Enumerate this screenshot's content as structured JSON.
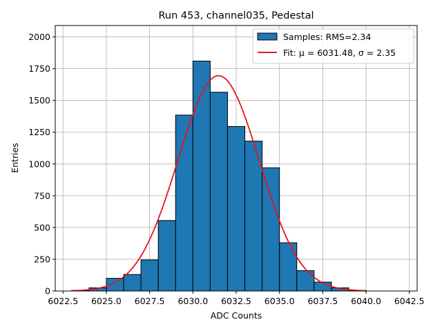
{
  "chart_data": {
    "type": "bar",
    "title": "Run 453, channel035, Pedestal",
    "xlabel": "ADC Counts",
    "ylabel": "Entries",
    "xlim": [
      6022.05,
      6042.95
    ],
    "ylim": [
      0,
      2090
    ],
    "xticks": [
      6022.5,
      6025.0,
      6027.5,
      6030.0,
      6032.5,
      6035.0,
      6037.5,
      6040.0,
      6042.5
    ],
    "xtick_labels": [
      "6022.5",
      "6025.0",
      "6027.5",
      "6030.0",
      "6032.5",
      "6035.0",
      "6037.5",
      "6040.0",
      "6042.5"
    ],
    "yticks": [
      0,
      250,
      500,
      750,
      1000,
      1250,
      1500,
      1750,
      2000
    ],
    "ytick_labels": [
      "0",
      "250",
      "500",
      "750",
      "1000",
      "1250",
      "1500",
      "1750",
      "2000"
    ],
    "grid": true,
    "legend_position": "top-right",
    "bins": {
      "edges": [
        6023,
        6024,
        6025,
        6026,
        6027,
        6028,
        6029,
        6030,
        6031,
        6032,
        6033,
        6034,
        6035,
        6036,
        6037,
        6038,
        6039,
        6040,
        6041,
        6042
      ],
      "counts": [
        5,
        25,
        100,
        130,
        245,
        555,
        1385,
        1810,
        1565,
        1295,
        1180,
        970,
        380,
        160,
        70,
        25,
        5,
        0,
        0
      ]
    },
    "fit_curve": {
      "mu": 6031.48,
      "sigma": 2.35,
      "amplitude": 1695,
      "x_range": [
        6023,
        6040
      ]
    },
    "series": [
      {
        "name": "Samples: RMS=2.34",
        "kind": "histogram",
        "color": "#1f77b4",
        "edgecolor": "#000000"
      },
      {
        "name": "Fit: μ = 6031.48, σ = 2.35",
        "kind": "line",
        "color": "#e8141b"
      }
    ]
  }
}
